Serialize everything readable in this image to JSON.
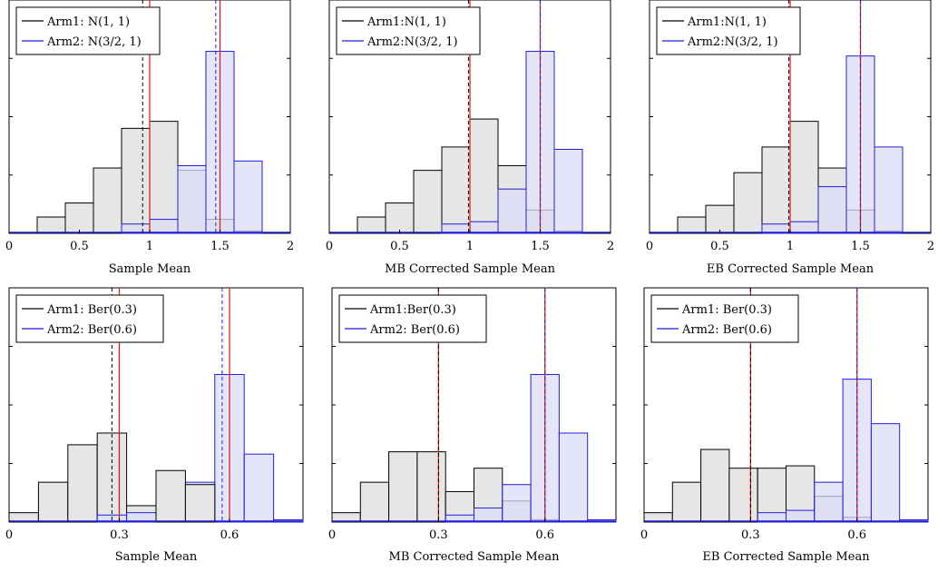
{
  "colors": {
    "arm1_edge": "#000000",
    "arm1_fill": "#e6e6e6",
    "arm2_edge": "#1f1fd6",
    "arm2_fill": "#dcdcf7",
    "true_mean_line": "#e02020",
    "arm1_estimate_line": "#000000",
    "arm2_estimate_line": "#1f1fd6"
  },
  "chart_data": [
    {
      "type": "bar",
      "subtype": "histogram",
      "xlabel": "Sample Mean",
      "xlim": [
        0,
        2
      ],
      "ylim": [
        0,
        100
      ],
      "xticks": [
        0,
        0.5,
        1,
        1.5,
        2
      ],
      "xtick_labels": [
        "0",
        "0.5",
        "1",
        "1.5",
        "2"
      ],
      "legend_position": "top-left",
      "legend": [
        "Arm1: N(1, 1)",
        "Arm2: N(3/2, 1)"
      ],
      "true_means": [
        1,
        1.5
      ],
      "estimate_means": [
        0.95,
        1.47
      ],
      "series": [
        {
          "name": "Arm1: N(1, 1)",
          "bin_width": 0.2,
          "bin_starts": [
            0.2,
            0.4,
            0.6,
            0.8,
            1.0,
            1.2,
            1.4,
            1.6
          ],
          "values": [
            7,
            13,
            28,
            45,
            48,
            27,
            6,
            1
          ]
        },
        {
          "name": "Arm2: N(3/2, 1)",
          "bin_width": 0.2,
          "bin_starts": [
            0.8,
            1.0,
            1.2,
            1.4,
            1.6
          ],
          "values": [
            4,
            6,
            29,
            78,
            31
          ]
        }
      ]
    },
    {
      "type": "bar",
      "subtype": "histogram",
      "xlabel": "MB Corrected Sample Mean",
      "xlim": [
        0,
        2
      ],
      "ylim": [
        0,
        100
      ],
      "xticks": [
        0,
        0.5,
        1,
        1.5,
        2
      ],
      "xtick_labels": [
        "0",
        "0.5",
        "1",
        "1.5",
        "2"
      ],
      "legend_position": "top-left",
      "legend": [
        "Arm1:N(1, 1)",
        "Arm2:N(3/2, 1)"
      ],
      "true_means": [
        1,
        1.5
      ],
      "estimate_means": [
        0.99,
        1.5
      ],
      "series": [
        {
          "name": "Arm1:N(1, 1)",
          "bin_width": 0.2,
          "bin_starts": [
            0.2,
            0.4,
            0.6,
            0.8,
            1.0,
            1.2,
            1.4,
            1.6
          ],
          "values": [
            7,
            13,
            27,
            37,
            49,
            29,
            10,
            1
          ]
        },
        {
          "name": "Arm2:N(3/2, 1)",
          "bin_width": 0.2,
          "bin_starts": [
            0.8,
            1.0,
            1.2,
            1.4,
            1.6
          ],
          "values": [
            4,
            5,
            19,
            78,
            36
          ]
        }
      ]
    },
    {
      "type": "bar",
      "subtype": "histogram",
      "xlabel": "EB Corrected Sample Mean",
      "xlim": [
        0,
        2
      ],
      "ylim": [
        0,
        100
      ],
      "xticks": [
        0,
        0.5,
        1,
        1.5,
        2
      ],
      "xtick_labels": [
        "0",
        "0.5",
        "1",
        "1.5",
        "2"
      ],
      "legend_position": "top-left",
      "legend": [
        "Arm1:N(1, 1)",
        "Arm2:N(3/2, 1)"
      ],
      "true_means": [
        1,
        1.5
      ],
      "estimate_means": [
        0.99,
        1.5
      ],
      "series": [
        {
          "name": "Arm1:N(1, 1)",
          "bin_width": 0.2,
          "bin_starts": [
            0.2,
            0.4,
            0.6,
            0.8,
            1.0,
            1.2,
            1.4,
            1.6
          ],
          "values": [
            7,
            12,
            26,
            37,
            48,
            28,
            10,
            1
          ]
        },
        {
          "name": "Arm2:N(3/2, 1)",
          "bin_width": 0.2,
          "bin_starts": [
            0.8,
            1.0,
            1.2,
            1.4,
            1.6
          ],
          "values": [
            4,
            5,
            20,
            76,
            37
          ]
        }
      ]
    },
    {
      "type": "bar",
      "subtype": "histogram",
      "xlabel": "Sample Mean",
      "xlim": [
        0,
        0.8
      ],
      "ylim": [
        0,
        100
      ],
      "xticks": [
        0,
        0.3,
        0.6
      ],
      "xtick_labels": [
        "0",
        "0.3",
        "0.6"
      ],
      "legend_position": "top-left",
      "legend": [
        "Arm1: Ber(0.3)",
        "Arm2: Ber(0.6)"
      ],
      "true_means": [
        0.3,
        0.6
      ],
      "estimate_means": [
        0.28,
        0.58
      ],
      "series": [
        {
          "name": "Arm1: Ber(0.3)",
          "bin_width": 0.08,
          "bin_starts": [
            0.0,
            0.08,
            0.16,
            0.24,
            0.32,
            0.4,
            0.48,
            0.56,
            0.64,
            0.72
          ],
          "values": [
            4,
            17,
            33,
            38,
            7,
            0,
            0,
            0,
            0,
            0
          ]
        },
        {
          "name": "Arm2: Ber(0.6)",
          "bin_width": 0.08,
          "bin_starts": [
            0.24,
            0.32,
            0.4,
            0.48,
            0.56,
            0.64,
            0.72
          ],
          "values": [
            3,
            4,
            11,
            17,
            63,
            29,
            1
          ]
        },
        {
          "name": "Arm1: Ber(0.3) upper",
          "bin_width": 0.08,
          "bin_starts": [
            0.4,
            0.48
          ],
          "values": [
            22,
            16
          ]
        }
      ]
    },
    {
      "type": "bar",
      "subtype": "histogram",
      "xlabel": "MB Corrected Sample Mean",
      "xlim": [
        0,
        0.8
      ],
      "ylim": [
        0,
        100
      ],
      "xticks": [
        0,
        0.3,
        0.6
      ],
      "xtick_labels": [
        "0",
        "0.3",
        "0.6"
      ],
      "legend_position": "top-left",
      "legend": [
        "Arm1:Ber(0.3)",
        "Arm2: Ber(0.6)"
      ],
      "true_means": [
        0.3,
        0.6
      ],
      "estimate_means": [
        0.3,
        0.6
      ],
      "series": [
        {
          "name": "Arm1:Ber(0.3)",
          "bin_width": 0.08,
          "bin_starts": [
            0.0,
            0.08,
            0.16,
            0.24,
            0.32,
            0.4,
            0.48,
            0.56,
            0.64
          ],
          "values": [
            4,
            17,
            30,
            30,
            13,
            23,
            9,
            1,
            0
          ]
        },
        {
          "name": "Arm2: Ber(0.6)",
          "bin_width": 0.08,
          "bin_starts": [
            0.32,
            0.4,
            0.48,
            0.56,
            0.64,
            0.72
          ],
          "values": [
            3,
            6,
            16,
            63,
            38,
            1
          ]
        }
      ]
    },
    {
      "type": "bar",
      "subtype": "histogram",
      "xlabel": "EB Corrected Sample Mean",
      "xlim": [
        0,
        0.8
      ],
      "ylim": [
        0,
        100
      ],
      "xticks": [
        0,
        0.3,
        0.6
      ],
      "xtick_labels": [
        "0",
        "0.3",
        "0.6"
      ],
      "legend_position": "top-left",
      "legend": [
        "Arm1: Ber(0.3)",
        "Arm2: Ber(0.6)"
      ],
      "true_means": [
        0.3,
        0.6
      ],
      "estimate_means": [
        0.3,
        0.6
      ],
      "series": [
        {
          "name": "Arm1: Ber(0.3)",
          "bin_width": 0.08,
          "bin_starts": [
            0.0,
            0.08,
            0.16,
            0.24,
            0.32,
            0.4,
            0.48,
            0.56
          ],
          "values": [
            4,
            17,
            31,
            23,
            23,
            24,
            11,
            2
          ]
        },
        {
          "name": "Arm2: Ber(0.6)",
          "bin_width": 0.08,
          "bin_starts": [
            0.32,
            0.4,
            0.48,
            0.56,
            0.64,
            0.72
          ],
          "values": [
            4,
            5,
            17,
            61,
            42,
            1
          ]
        }
      ]
    }
  ]
}
